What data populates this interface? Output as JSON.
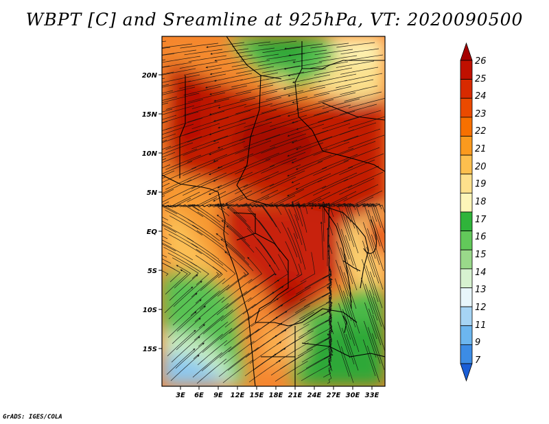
{
  "title": "WBPT [C] and Sreamline at 925hPa, VT: 2020090500",
  "footer": "GrADS: IGES/COLA",
  "map": {
    "lat_labels": [
      "20N",
      "15N",
      "10N",
      "5N",
      "EQ",
      "5S",
      "10S",
      "15S"
    ],
    "lon_labels": [
      "3E",
      "6E",
      "9E",
      "12E",
      "15E",
      "18E",
      "21E",
      "24E",
      "27E",
      "30E",
      "33E"
    ]
  },
  "colorbar": {
    "labels": [
      "26",
      "25",
      "24",
      "23",
      "22",
      "21",
      "20",
      "19",
      "18",
      "17",
      "16",
      "15",
      "14",
      "13",
      "12",
      "11",
      "9",
      "7"
    ],
    "colors": [
      "#a50000",
      "#c01000",
      "#d82a00",
      "#ea4a00",
      "#f77000",
      "#fb9a1e",
      "#fdbf4e",
      "#fee08c",
      "#fdf5b8",
      "#2fb43a",
      "#62c85a",
      "#9ad98a",
      "#d7f2d0",
      "#e8f6fb",
      "#a6d4f4",
      "#6cb6ef",
      "#3c8ce5",
      "#1a5ed6"
    ]
  },
  "colors": {
    "outline": "#000000",
    "background": "#ffffff"
  }
}
